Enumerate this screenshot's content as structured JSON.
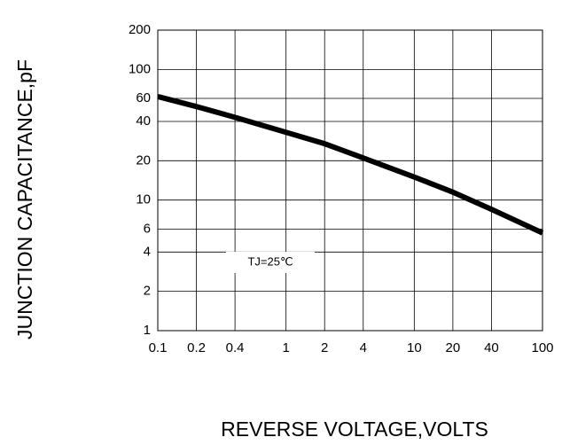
{
  "chart_data": {
    "type": "line",
    "xlabel": "REVERSE VOLTAGE,VOLTS",
    "ylabel": "JUNCTION CAPACITANCE,pF",
    "annotation": "TJ=25℃",
    "xscale": "log",
    "yscale": "log",
    "grid": true,
    "xlim": [
      0.1,
      100
    ],
    "ylim": [
      1,
      200
    ],
    "xticks": [
      0.1,
      0.2,
      0.4,
      1,
      2,
      4,
      10,
      20,
      40,
      100
    ],
    "yticks": [
      1,
      2,
      4,
      6,
      10,
      20,
      40,
      60,
      100,
      200
    ],
    "x": [
      0.1,
      0.2,
      0.4,
      1,
      2,
      4,
      10,
      20,
      40,
      100
    ],
    "series": [
      {
        "color": "#000000",
        "values": [
          62,
          52,
          43,
          33,
          27,
          21,
          15,
          11.5,
          8.5,
          5.6
        ]
      }
    ]
  }
}
